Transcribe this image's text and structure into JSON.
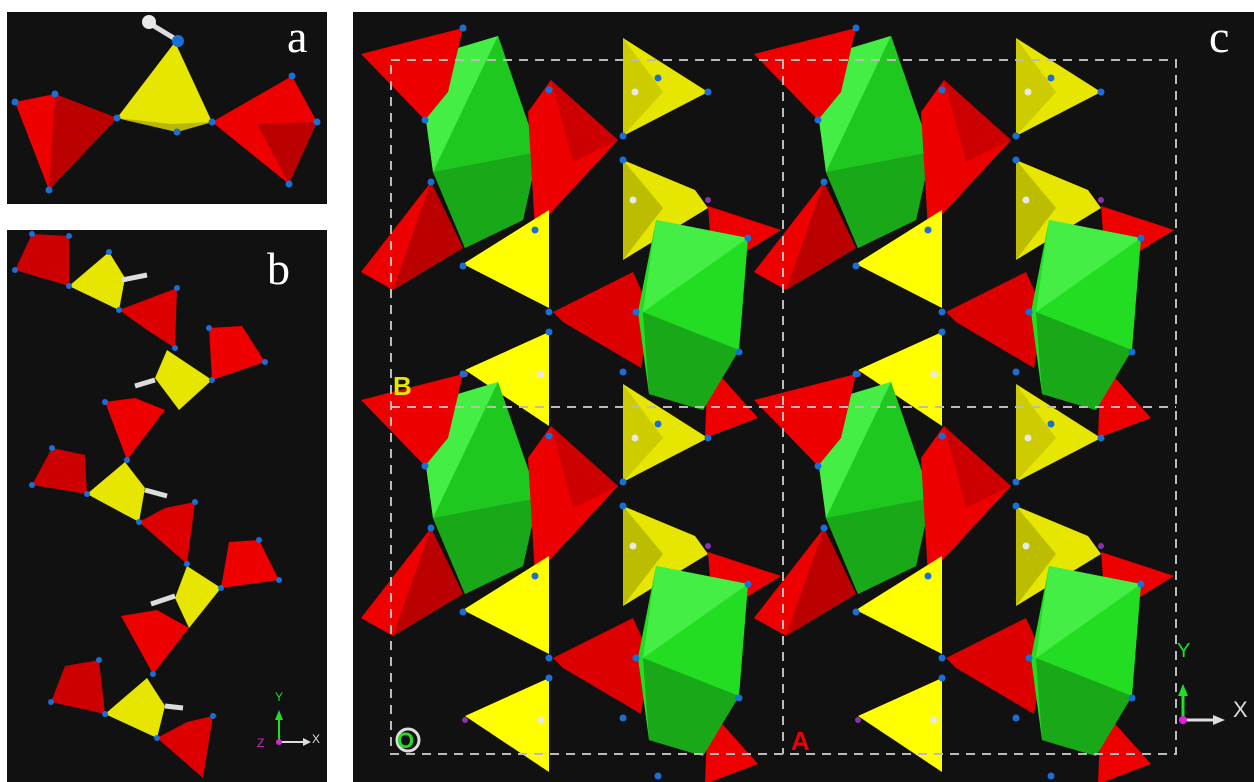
{
  "panels": {
    "a": {
      "label": "a"
    },
    "b": {
      "label": "b",
      "axes": {
        "y": "Y",
        "z": "Z",
        "x": "X"
      }
    },
    "c": {
      "label": "c",
      "axes": {
        "y": "Y",
        "x": "X"
      },
      "cell_labels": {
        "b": "B",
        "origin": "O",
        "a": "A"
      }
    }
  },
  "colors": {
    "background": "#111111",
    "red_tetrahedron": "#ee0000",
    "yellow_tetrahedron": "#e6e600",
    "green_octahedron": "#22dd22",
    "oxygen_atom": "#1a6fd6",
    "hydrogen_atom": "#e8e8e8",
    "cell_outline": "#bbbbbb",
    "cell_label_b": "#e6e600",
    "cell_label_origin": "#dddddd",
    "cell_label_a": "#ee0000",
    "axis_y": "#22dd22",
    "axis_x": "#dddddd",
    "axis_z": "#dd22dd"
  }
}
